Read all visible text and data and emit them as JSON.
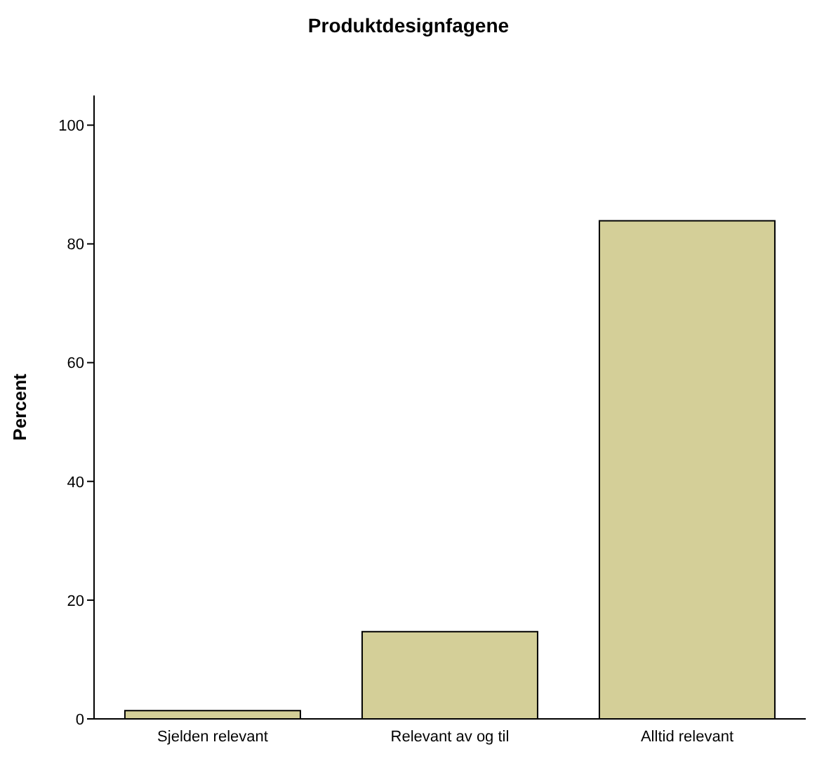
{
  "chart_data": {
    "type": "bar",
    "title": "Produktdesignfagene",
    "ylabel": "Percent",
    "categories": [
      "Sjelden relevant",
      "Relevant av og til",
      "Alltid relevant"
    ],
    "values": [
      1.4,
      14.7,
      83.9
    ],
    "color": "#d4cf98",
    "ylim": [
      0,
      105
    ],
    "yticks": [
      0,
      20,
      40,
      60,
      80,
      100
    ],
    "grid": false
  }
}
